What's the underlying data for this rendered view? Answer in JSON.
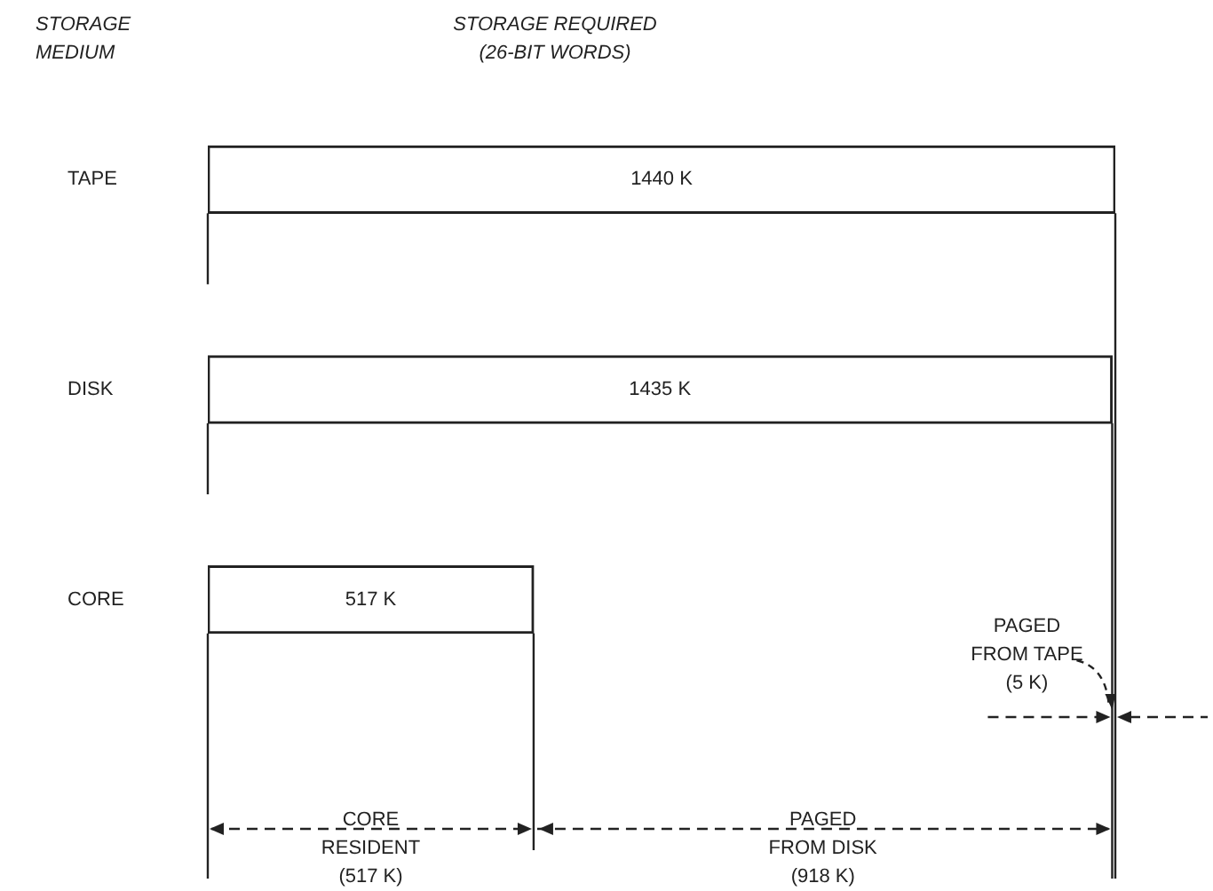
{
  "chart_data": {
    "type": "bar",
    "orientation": "horizontal",
    "title": "STORAGE REQUIRED\n(26-BIT WORDS)",
    "ref_lines": [
      {
        "axis": "x",
        "value": 517,
        "line_style": "solid"
      }
    ],
    "categories": [
      "TAPE",
      "DISK",
      "CORE"
    ],
    "values": [
      1440,
      1435,
      517
    ],
    "value_labels": [
      "1440 K",
      "1435 K",
      "517 K"
    ],
    "color": "#ffffff",
    "annotations": [
      "STORAGE\nMEDIUM",
      "PAGED\nFROM TAPE\n(5 K)",
      "CORE\nRESIDENT\n(517 K)",
      "PAGED\nFROM DISK\n(918 K)"
    ]
  }
}
